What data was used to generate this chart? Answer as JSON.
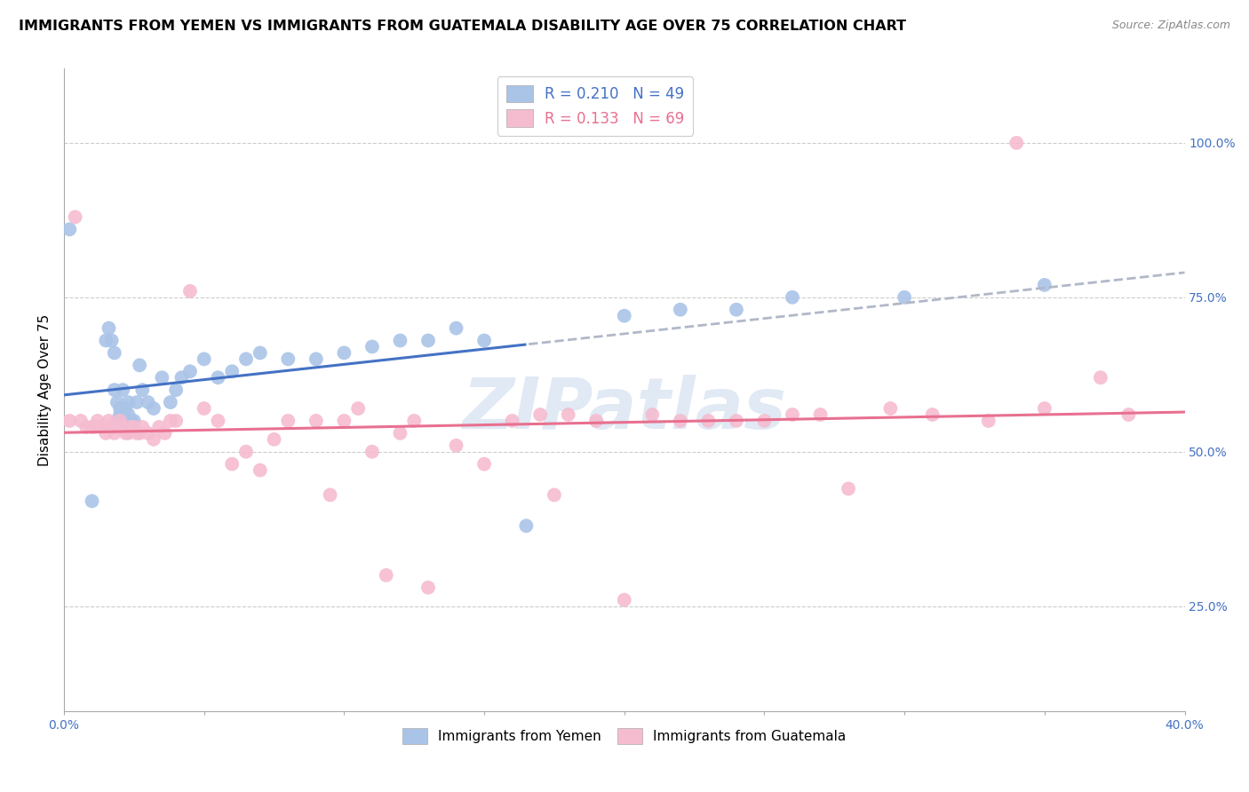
{
  "title": "IMMIGRANTS FROM YEMEN VS IMMIGRANTS FROM GUATEMALA DISABILITY AGE OVER 75 CORRELATION CHART",
  "source": "Source: ZipAtlas.com",
  "ylabel": "Disability Age Over 75",
  "xlim": [
    0.0,
    0.4
  ],
  "ylim": [
    0.08,
    1.12
  ],
  "xticks": [
    0.0,
    0.05,
    0.1,
    0.15,
    0.2,
    0.25,
    0.3,
    0.35,
    0.4
  ],
  "xticklabels": [
    "0.0%",
    "",
    "",
    "",
    "",
    "",
    "",
    "",
    "40.0%"
  ],
  "yticks": [
    0.25,
    0.5,
    0.75,
    1.0
  ],
  "yticklabels": [
    "25.0%",
    "50.0%",
    "75.0%",
    "100.0%"
  ],
  "series_yemen": {
    "color": "#aac4e8",
    "line_color": "#4472c4",
    "dash_color": "#b0b8c8",
    "R": 0.21,
    "N": 49,
    "x": [
      0.002,
      0.01,
      0.015,
      0.016,
      0.017,
      0.018,
      0.018,
      0.019,
      0.019,
      0.02,
      0.02,
      0.021,
      0.021,
      0.022,
      0.022,
      0.023,
      0.023,
      0.024,
      0.025,
      0.026,
      0.027,
      0.028,
      0.03,
      0.032,
      0.035,
      0.038,
      0.04,
      0.042,
      0.045,
      0.05,
      0.055,
      0.06,
      0.065,
      0.07,
      0.08,
      0.09,
      0.1,
      0.11,
      0.12,
      0.13,
      0.14,
      0.15,
      0.165,
      0.2,
      0.22,
      0.24,
      0.26,
      0.3,
      0.35
    ],
    "y": [
      0.86,
      0.42,
      0.68,
      0.7,
      0.68,
      0.66,
      0.6,
      0.55,
      0.58,
      0.56,
      0.57,
      0.56,
      0.6,
      0.57,
      0.55,
      0.56,
      0.58,
      0.55,
      0.55,
      0.58,
      0.64,
      0.6,
      0.58,
      0.57,
      0.62,
      0.58,
      0.6,
      0.62,
      0.63,
      0.65,
      0.62,
      0.63,
      0.65,
      0.66,
      0.65,
      0.65,
      0.66,
      0.67,
      0.68,
      0.68,
      0.7,
      0.68,
      0.38,
      0.72,
      0.73,
      0.73,
      0.75,
      0.75,
      0.77
    ]
  },
  "series_guatemala": {
    "color": "#f5bcd0",
    "line_color": "#e87090",
    "R": 0.133,
    "N": 69,
    "x": [
      0.002,
      0.004,
      0.006,
      0.008,
      0.01,
      0.011,
      0.012,
      0.013,
      0.014,
      0.015,
      0.016,
      0.017,
      0.018,
      0.019,
      0.02,
      0.021,
      0.022,
      0.023,
      0.024,
      0.025,
      0.026,
      0.027,
      0.028,
      0.03,
      0.032,
      0.034,
      0.036,
      0.038,
      0.04,
      0.045,
      0.05,
      0.055,
      0.06,
      0.065,
      0.07,
      0.075,
      0.08,
      0.09,
      0.095,
      0.1,
      0.105,
      0.11,
      0.115,
      0.12,
      0.125,
      0.13,
      0.14,
      0.15,
      0.16,
      0.17,
      0.175,
      0.18,
      0.19,
      0.2,
      0.21,
      0.22,
      0.23,
      0.24,
      0.25,
      0.26,
      0.27,
      0.28,
      0.295,
      0.31,
      0.33,
      0.34,
      0.35,
      0.37,
      0.38
    ],
    "y": [
      0.55,
      0.88,
      0.55,
      0.54,
      0.54,
      0.54,
      0.55,
      0.54,
      0.54,
      0.53,
      0.55,
      0.54,
      0.53,
      0.54,
      0.55,
      0.54,
      0.53,
      0.53,
      0.54,
      0.54,
      0.53,
      0.53,
      0.54,
      0.53,
      0.52,
      0.54,
      0.53,
      0.55,
      0.55,
      0.76,
      0.57,
      0.55,
      0.48,
      0.5,
      0.47,
      0.52,
      0.55,
      0.55,
      0.43,
      0.55,
      0.57,
      0.5,
      0.3,
      0.53,
      0.55,
      0.28,
      0.51,
      0.48,
      0.55,
      0.56,
      0.43,
      0.56,
      0.55,
      0.26,
      0.56,
      0.55,
      0.55,
      0.55,
      0.55,
      0.56,
      0.56,
      0.44,
      0.57,
      0.56,
      0.55,
      1.0,
      0.57,
      0.62,
      0.56
    ]
  },
  "background_color": "#ffffff",
  "grid_color": "#cccccc",
  "title_fontsize": 11.5,
  "axis_label_fontsize": 11,
  "tick_fontsize": 10,
  "tick_color": "#4472c4",
  "yemen_trendline_cutoff": 0.165,
  "watermark_text": "ZIPatlas",
  "watermark_color": "#c8d8ec",
  "watermark_alpha": 0.55
}
